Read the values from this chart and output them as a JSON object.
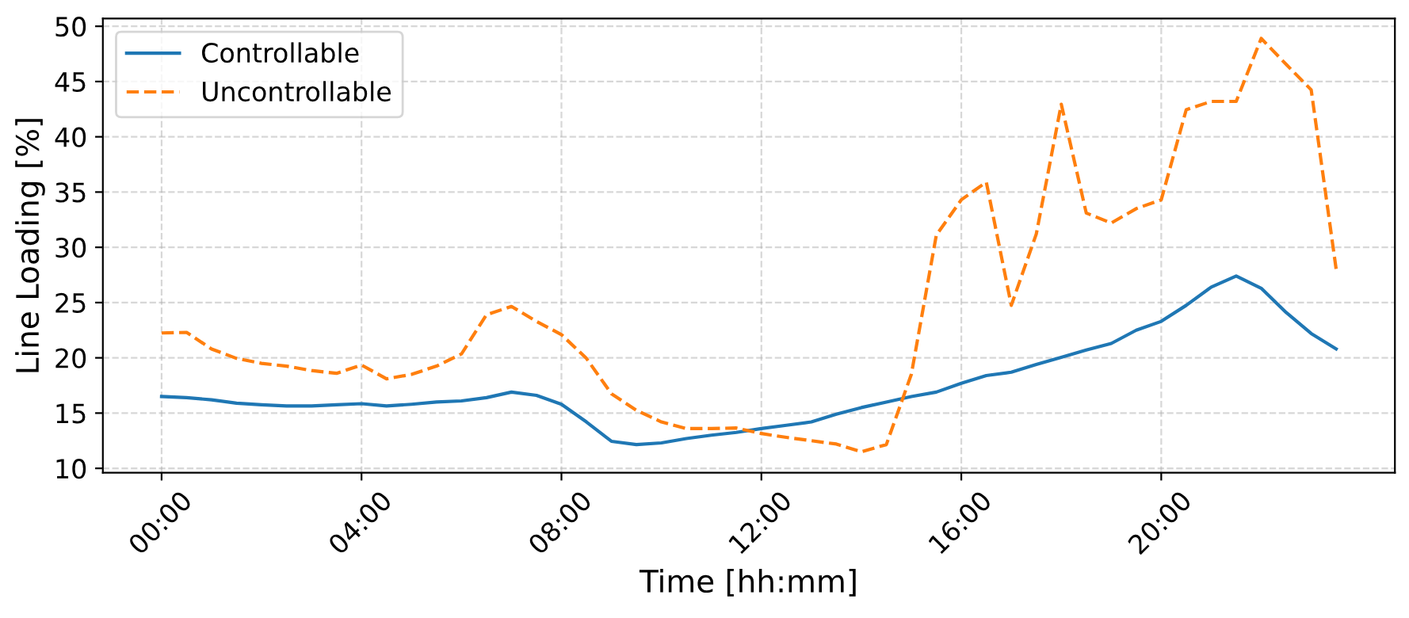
{
  "chart_data": {
    "type": "line",
    "xlabel": "Time [hh:mm]",
    "ylabel": "Line Loading [%]",
    "x": [
      0,
      0.5,
      1,
      1.5,
      2,
      2.5,
      3,
      3.5,
      4,
      4.5,
      5,
      5.5,
      6,
      6.5,
      7,
      7.5,
      8,
      8.5,
      9,
      9.5,
      10,
      10.5,
      11,
      11.5,
      12,
      12.5,
      13,
      13.5,
      14,
      14.5,
      15,
      15.5,
      16,
      16.5,
      17,
      17.5,
      18,
      18.5,
      19,
      19.5,
      20,
      20.5,
      21,
      21.5,
      22,
      22.5,
      23,
      23.5
    ],
    "series": [
      {
        "name": "Controllable",
        "color": "#1f77b4",
        "line_style": "solid",
        "values": [
          16.5,
          16.4,
          16.2,
          15.9,
          15.75,
          15.65,
          15.65,
          15.75,
          15.85,
          15.65,
          15.8,
          16.0,
          16.1,
          16.4,
          16.9,
          16.6,
          15.8,
          14.2,
          12.45,
          12.15,
          12.3,
          12.7,
          13.0,
          13.25,
          13.6,
          13.9,
          14.2,
          14.9,
          15.5,
          16.0,
          16.5,
          16.9,
          17.7,
          18.4,
          18.7,
          19.4,
          20.05,
          20.7,
          21.3,
          22.5,
          23.3,
          24.75,
          26.4,
          27.4,
          26.3,
          24.1,
          22.2,
          20.8
        ]
      },
      {
        "name": "Uncontrollable",
        "color": "#ff7f0e",
        "line_style": "dashed",
        "values": [
          22.25,
          22.3,
          20.8,
          19.95,
          19.5,
          19.25,
          18.85,
          18.6,
          19.35,
          18.1,
          18.5,
          19.25,
          20.35,
          23.9,
          24.65,
          23.3,
          22.1,
          19.95,
          16.75,
          15.25,
          14.2,
          13.6,
          13.6,
          13.65,
          13.15,
          12.8,
          12.5,
          12.2,
          11.5,
          12.15,
          18.5,
          31.1,
          34.3,
          35.9,
          24.75,
          31.2,
          42.95,
          33.1,
          32.2,
          33.5,
          34.3,
          42.45,
          43.2,
          43.2,
          48.9,
          46.55,
          44.25,
          28.0
        ]
      }
    ],
    "xlim": [
      -1.175,
      24.675
    ],
    "xticks": [
      {
        "value": 0,
        "label": "00:00"
      },
      {
        "value": 4,
        "label": "04:00"
      },
      {
        "value": 8,
        "label": "08:00"
      },
      {
        "value": 12,
        "label": "12:00"
      },
      {
        "value": 16,
        "label": "16:00"
      },
      {
        "value": 20,
        "label": "20:00"
      }
    ],
    "ylim": [
      9.6,
      50.7
    ],
    "yticks": [
      10,
      15,
      20,
      25,
      30,
      35,
      40,
      45,
      50
    ],
    "grid": true,
    "legend": "top left",
    "marker": "none"
  }
}
